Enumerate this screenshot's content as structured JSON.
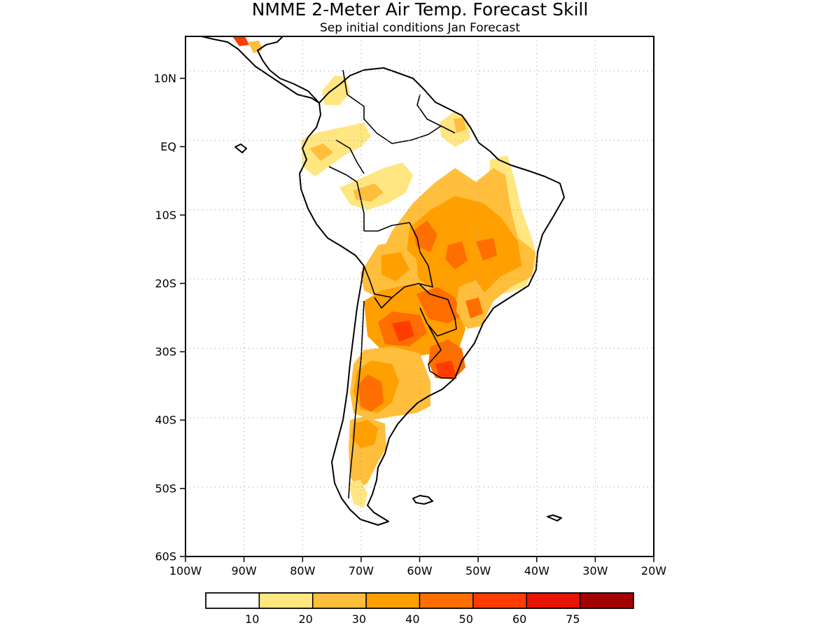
{
  "chart_data": {
    "type": "heatmap",
    "title": "NMME 2-Meter Air Temp. Forecast Skill",
    "subtitle": "Sep initial conditions  Jan Forecast",
    "lon_range": [
      -100,
      -20
    ],
    "lat_range": [
      -60,
      15
    ],
    "grid": "dotted",
    "x_ticks": [
      "100W",
      "90W",
      "80W",
      "70W",
      "60W",
      "50W",
      "40W",
      "30W",
      "20W"
    ],
    "y_ticks": [
      "10N",
      "EQ",
      "10S",
      "20S",
      "30S",
      "40S",
      "50S",
      "60S"
    ],
    "colorbar": {
      "placement": "bottom",
      "labels": [
        "10",
        "20",
        "30",
        "40",
        "50",
        "60",
        "75"
      ],
      "colors": [
        "#ffffff",
        "#ffe680",
        "#ffbe3c",
        "#ff9f00",
        "#ff6e00",
        "#ff3c00",
        "#e61400",
        "#a50000"
      ]
    }
  }
}
